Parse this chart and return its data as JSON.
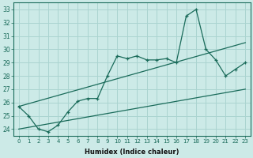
{
  "xlabel": "Humidex (Indice chaleur)",
  "bg_color": "#cceae7",
  "grid_color": "#aad4d0",
  "line_color": "#1a6b5a",
  "x_values": [
    0,
    1,
    2,
    3,
    4,
    5,
    6,
    7,
    8,
    9,
    10,
    11,
    12,
    13,
    14,
    15,
    16,
    17,
    18,
    19,
    20,
    21,
    22,
    23
  ],
  "main_values": [
    25.7,
    25.0,
    24.0,
    23.8,
    24.3,
    25.3,
    26.1,
    26.3,
    26.3,
    28.0,
    29.5,
    29.3,
    29.5,
    29.2,
    29.2,
    29.3,
    29.0,
    32.5,
    33.0,
    30.0,
    29.2,
    28.0,
    28.5,
    29.0
  ],
  "lower_trend": [
    24.0,
    27.0
  ],
  "upper_trend": [
    25.7,
    30.5
  ],
  "trend_x": [
    0,
    23
  ],
  "ylim": [
    23.5,
    33.5
  ],
  "xlim": [
    -0.5,
    23.5
  ],
  "yticks": [
    24,
    25,
    26,
    27,
    28,
    29,
    30,
    31,
    32,
    33
  ],
  "xticks": [
    0,
    1,
    2,
    3,
    4,
    5,
    6,
    7,
    8,
    9,
    10,
    11,
    12,
    13,
    14,
    15,
    16,
    17,
    18,
    19,
    20,
    21,
    22,
    23
  ]
}
